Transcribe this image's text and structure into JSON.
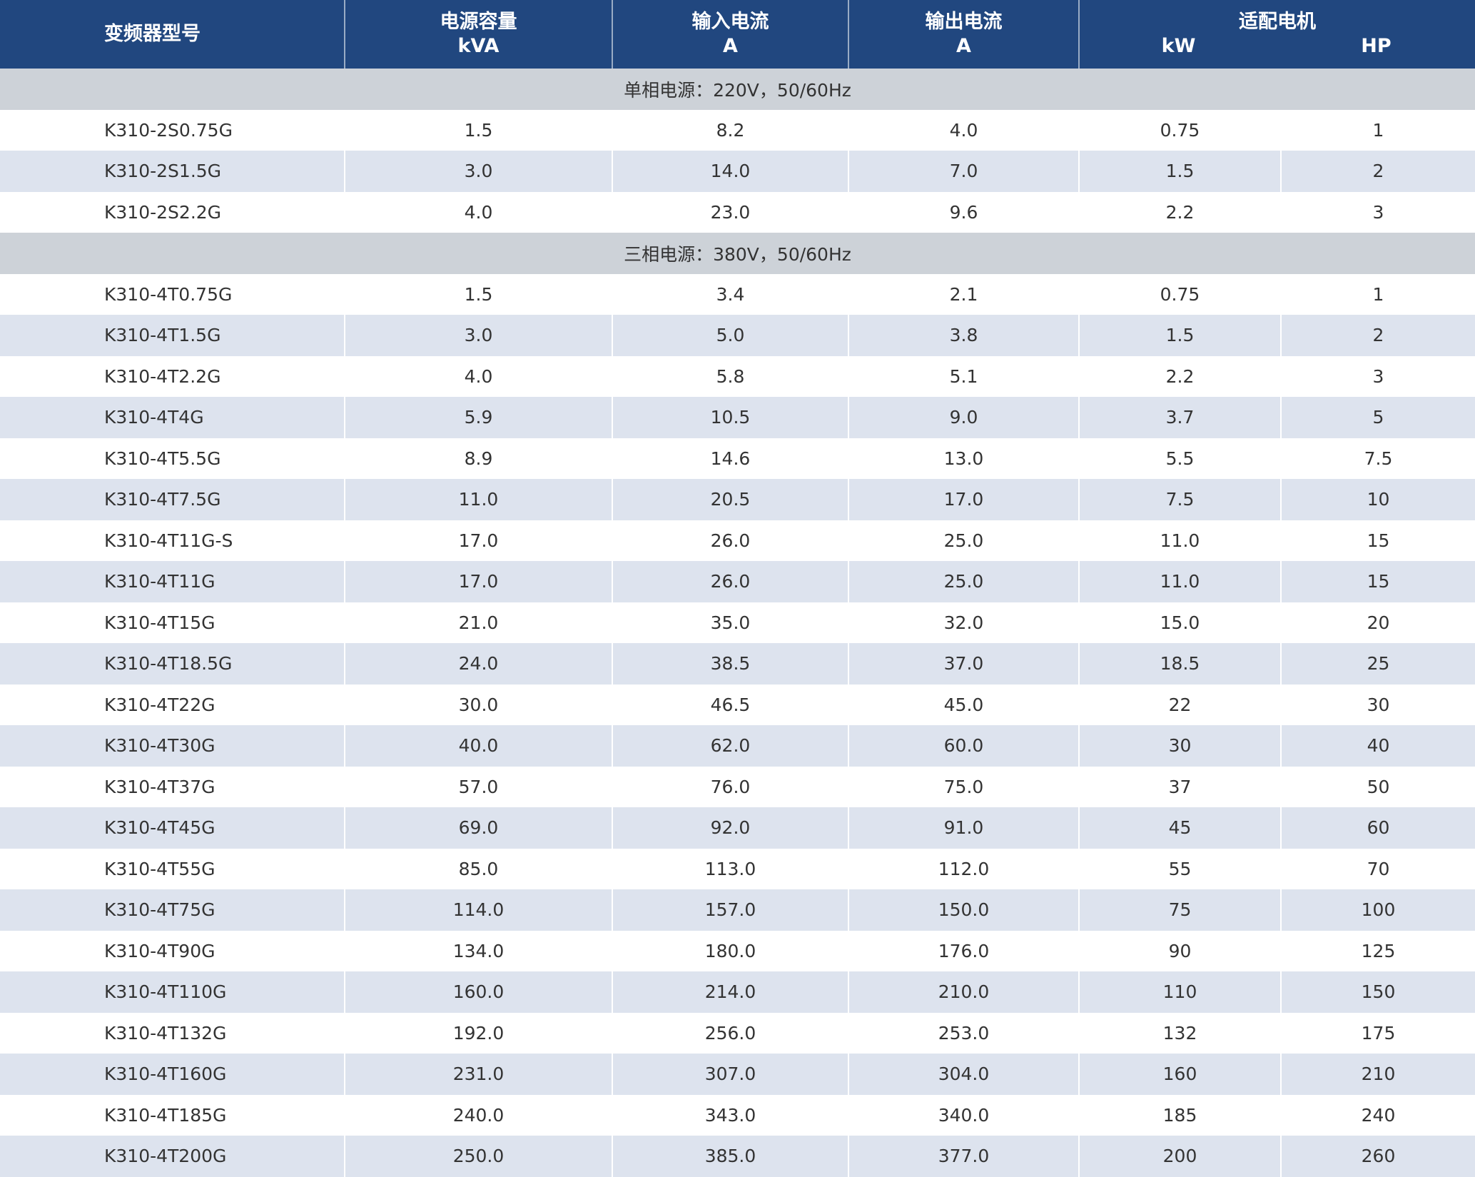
{
  "header": {
    "model": "变频器型号",
    "capacity": {
      "name": "电源容量",
      "unit": "kVA"
    },
    "input": {
      "name": "输入电流",
      "unit": "A"
    },
    "output": {
      "name": "输出电流",
      "unit": "A"
    },
    "motor": {
      "name": "适配电机",
      "units": [
        "kW",
        "HP"
      ]
    }
  },
  "sections": [
    {
      "title": "单相电源：220V，50/60Hz",
      "rows": [
        [
          "K310-2S0.75G",
          "1.5",
          "8.2",
          "4.0",
          "0.75",
          "1"
        ],
        [
          "K310-2S1.5G",
          "3.0",
          "14.0",
          "7.0",
          "1.5",
          "2"
        ],
        [
          "K310-2S2.2G",
          "4.0",
          "23.0",
          "9.6",
          "2.2",
          "3"
        ]
      ]
    },
    {
      "title": "三相电源：380V，50/60Hz",
      "rows": [
        [
          "K310-4T0.75G",
          "1.5",
          "3.4",
          "2.1",
          "0.75",
          "1"
        ],
        [
          "K310-4T1.5G",
          "3.0",
          "5.0",
          "3.8",
          "1.5",
          "2"
        ],
        [
          "K310-4T2.2G",
          "4.0",
          "5.8",
          "5.1",
          "2.2",
          "3"
        ],
        [
          "K310-4T4G",
          "5.9",
          "10.5",
          "9.0",
          "3.7",
          "5"
        ],
        [
          "K310-4T5.5G",
          "8.9",
          "14.6",
          "13.0",
          "5.5",
          "7.5"
        ],
        [
          "K310-4T7.5G",
          "11.0",
          "20.5",
          "17.0",
          "7.5",
          "10"
        ],
        [
          "K310-4T11G-S",
          "17.0",
          "26.0",
          "25.0",
          "11.0",
          "15"
        ],
        [
          "K310-4T11G",
          "17.0",
          "26.0",
          "25.0",
          "11.0",
          "15"
        ],
        [
          "K310-4T15G",
          "21.0",
          "35.0",
          "32.0",
          "15.0",
          "20"
        ],
        [
          "K310-4T18.5G",
          "24.0",
          "38.5",
          "37.0",
          "18.5",
          "25"
        ],
        [
          "K310-4T22G",
          "30.0",
          "46.5",
          "45.0",
          "22",
          "30"
        ],
        [
          "K310-4T30G",
          "40.0",
          "62.0",
          "60.0",
          "30",
          "40"
        ],
        [
          "K310-4T37G",
          "57.0",
          "76.0",
          "75.0",
          "37",
          "50"
        ],
        [
          "K310-4T45G",
          "69.0",
          "92.0",
          "91.0",
          "45",
          "60"
        ],
        [
          "K310-4T55G",
          "85.0",
          "113.0",
          "112.0",
          "55",
          "70"
        ],
        [
          "K310-4T75G",
          "114.0",
          "157.0",
          "150.0",
          "75",
          "100"
        ],
        [
          "K310-4T90G",
          "134.0",
          "180.0",
          "176.0",
          "90",
          "125"
        ],
        [
          "K310-4T110G",
          "160.0",
          "214.0",
          "210.0",
          "110",
          "150"
        ],
        [
          "K310-4T132G",
          "192.0",
          "256.0",
          "253.0",
          "132",
          "175"
        ],
        [
          "K310-4T160G",
          "231.0",
          "307.0",
          "304.0",
          "160",
          "210"
        ],
        [
          "K310-4T185G",
          "240.0",
          "343.0",
          "340.0",
          "185",
          "240"
        ],
        [
          "K310-4T200G",
          "250.0",
          "385.0",
          "377.0",
          "200",
          "260"
        ]
      ]
    }
  ]
}
